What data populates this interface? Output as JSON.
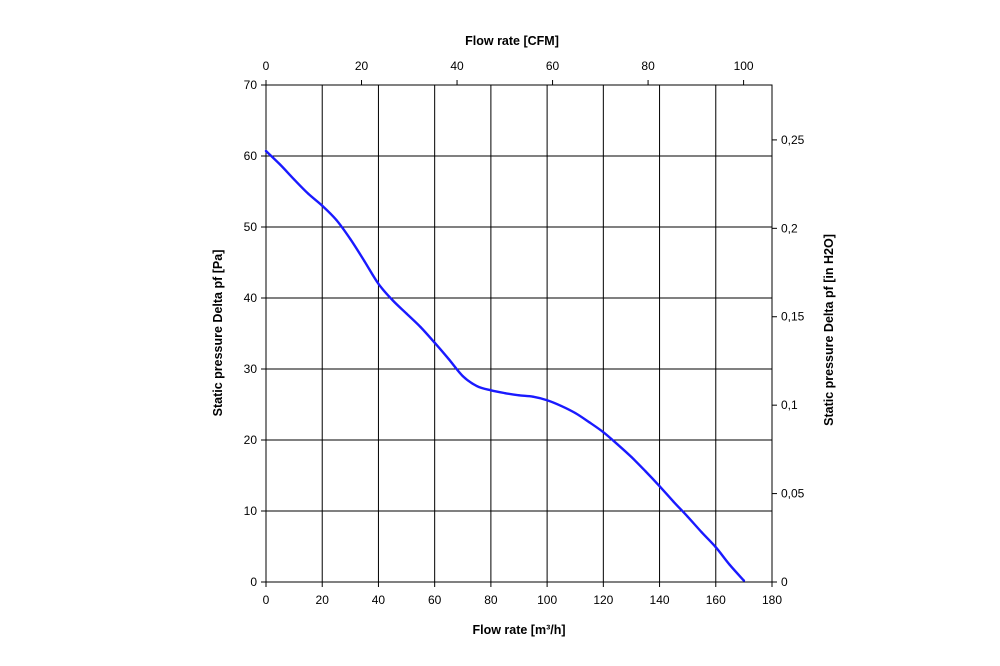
{
  "chart_data": {
    "type": "line",
    "title": "",
    "xlabel": "Flow rate [m³/h]",
    "x2label": "Flow rate [CFM]",
    "ylabel": "Static pressure Delta pf [Pa]",
    "y2label": "Static pressure Delta pf [in H2O]",
    "xlim": [
      0,
      180
    ],
    "ylim": [
      0,
      70
    ],
    "x_ticks": [
      "0",
      "20",
      "40",
      "60",
      "80",
      "100",
      "120",
      "140",
      "160",
      "180"
    ],
    "y_ticks": [
      "0",
      "10",
      "20",
      "30",
      "40",
      "50",
      "60",
      "70"
    ],
    "x2_ticks": [
      "0",
      "20",
      "40",
      "60",
      "80",
      "100"
    ],
    "y2_ticks": [
      "0",
      "0,05",
      "0,1",
      "0,15",
      "0,2",
      "0,25"
    ],
    "x2_scale_per_x": 0.5886,
    "y2_scale_per_y": 0.004015,
    "grid": true,
    "series": [
      {
        "name": "",
        "color": "#1a1aff",
        "x": [
          0,
          5,
          10,
          15,
          20,
          25,
          30,
          35,
          40,
          45,
          50,
          55,
          60,
          65,
          70,
          75,
          80,
          85,
          90,
          95,
          100,
          105,
          110,
          115,
          120,
          125,
          130,
          135,
          140,
          145,
          150,
          155,
          160,
          165,
          170
        ],
        "y": [
          60.7,
          58.8,
          56.7,
          54.7,
          53.0,
          51.0,
          48.3,
          45.2,
          42.0,
          39.7,
          37.8,
          35.9,
          33.7,
          31.4,
          29.0,
          27.6,
          27.0,
          26.6,
          26.3,
          26.1,
          25.6,
          24.8,
          23.8,
          22.5,
          21.1,
          19.4,
          17.6,
          15.6,
          13.5,
          11.3,
          9.2,
          7.0,
          4.9,
          2.4,
          0.2
        ]
      }
    ]
  }
}
